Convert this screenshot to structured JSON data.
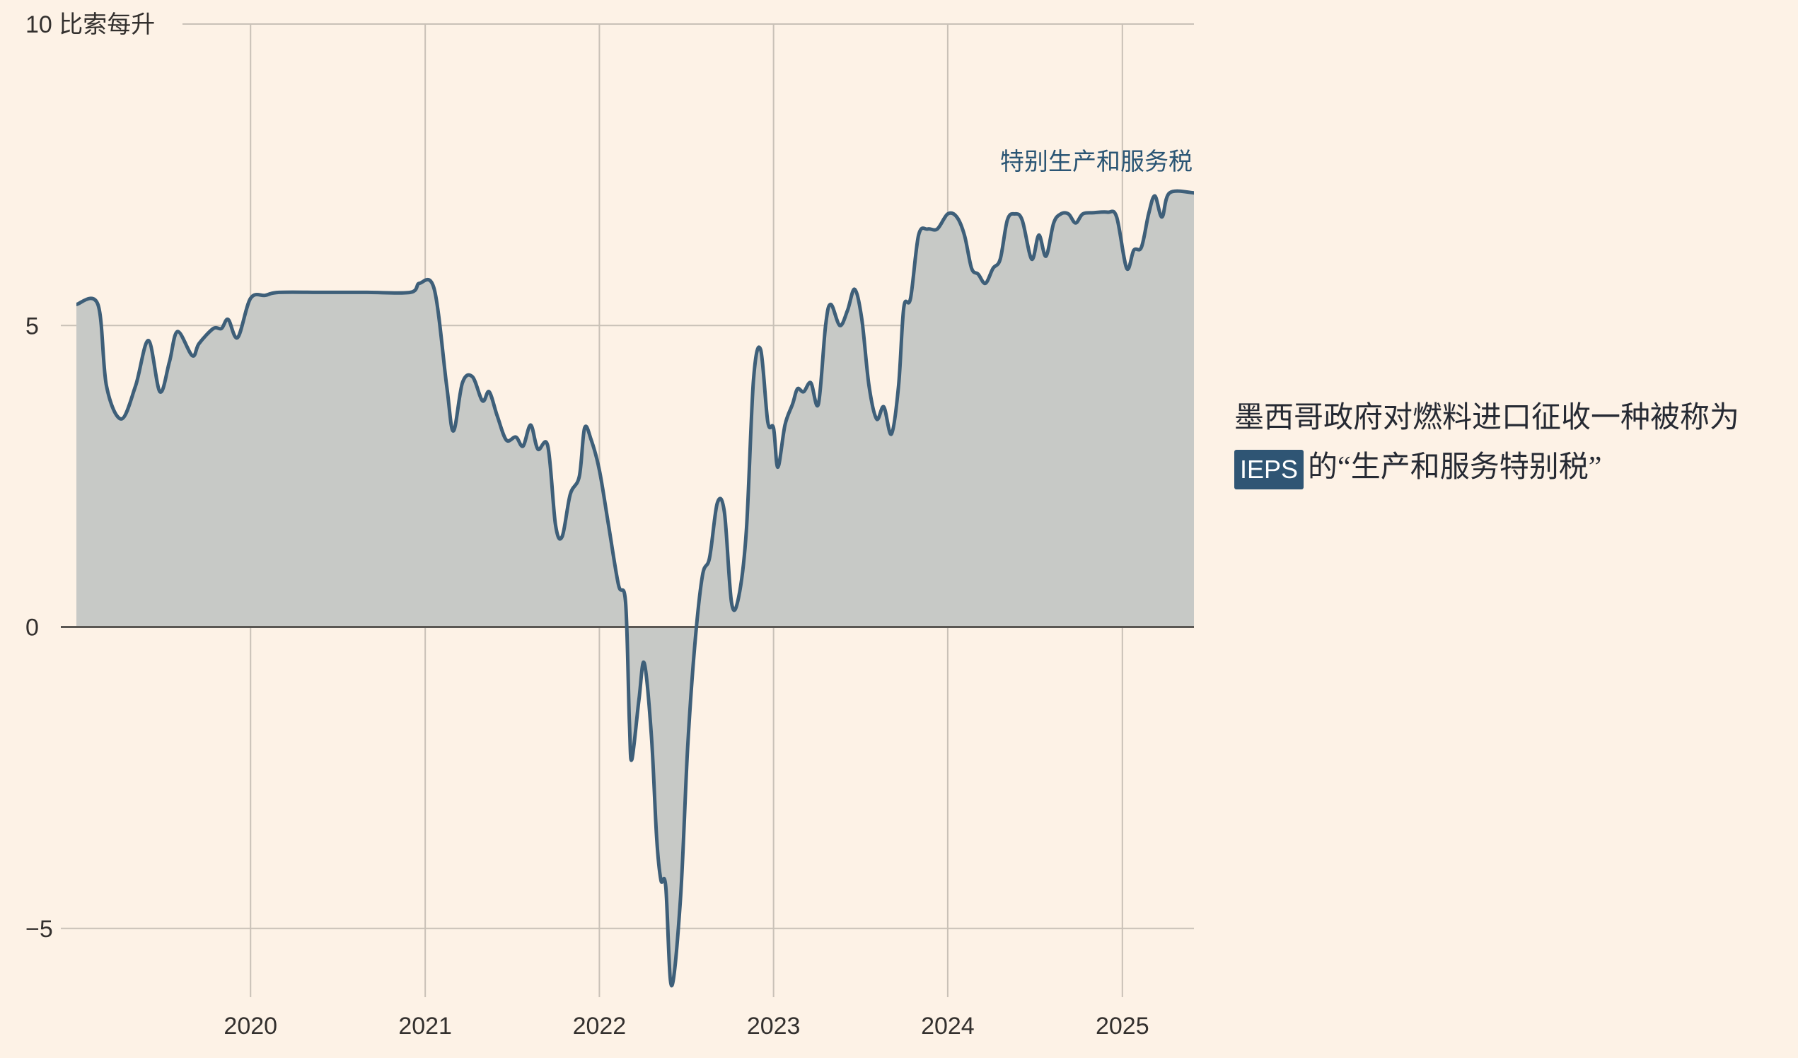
{
  "chart_data": {
    "type": "area",
    "ylabel": "比索每升",
    "ylim": [
      -6,
      10
    ],
    "yticks": [
      {
        "value": 10,
        "label": "10"
      },
      {
        "value": 5,
        "label": "5"
      },
      {
        "value": 0,
        "label": "0"
      },
      {
        "value": -5,
        "label": "−5"
      }
    ],
    "xlim": [
      "2019-01-01",
      "2025-05-31"
    ],
    "xticks": [
      {
        "date": "2020-01-01",
        "label": "2020"
      },
      {
        "date": "2021-01-01",
        "label": "2021"
      },
      {
        "date": "2022-01-01",
        "label": "2022"
      },
      {
        "date": "2023-01-01",
        "label": "2023"
      },
      {
        "date": "2024-01-01",
        "label": "2024"
      },
      {
        "date": "2025-01-01",
        "label": "2025"
      }
    ],
    "grid": true,
    "series": [
      {
        "name": "特别生产和服务税",
        "points": [
          [
            "2019-01-01",
            5.35
          ],
          [
            "2019-02-15",
            5.35
          ],
          [
            "2019-03-05",
            4.0
          ],
          [
            "2019-04-05",
            3.45
          ],
          [
            "2019-05-05",
            4.0
          ],
          [
            "2019-06-01",
            4.75
          ],
          [
            "2019-06-25",
            3.9
          ],
          [
            "2019-07-15",
            4.4
          ],
          [
            "2019-08-01",
            4.9
          ],
          [
            "2019-09-01",
            4.5
          ],
          [
            "2019-09-15",
            4.7
          ],
          [
            "2019-10-15",
            4.95
          ],
          [
            "2019-11-01",
            4.95
          ],
          [
            "2019-11-15",
            5.1
          ],
          [
            "2019-12-05",
            4.8
          ],
          [
            "2020-01-01",
            5.45
          ],
          [
            "2020-02-01",
            5.5
          ],
          [
            "2020-03-01",
            5.55
          ],
          [
            "2020-06-01",
            5.55
          ],
          [
            "2020-09-01",
            5.55
          ],
          [
            "2020-12-01",
            5.55
          ],
          [
            "2020-12-20",
            5.7
          ],
          [
            "2021-01-20",
            5.6
          ],
          [
            "2021-02-15",
            4.0
          ],
          [
            "2021-03-01",
            3.25
          ],
          [
            "2021-03-20",
            4.05
          ],
          [
            "2021-04-10",
            4.15
          ],
          [
            "2021-05-01",
            3.75
          ],
          [
            "2021-05-15",
            3.9
          ],
          [
            "2021-06-01",
            3.5
          ],
          [
            "2021-06-20",
            3.1
          ],
          [
            "2021-07-10",
            3.15
          ],
          [
            "2021-07-25",
            3.0
          ],
          [
            "2021-08-10",
            3.35
          ],
          [
            "2021-08-25",
            2.95
          ],
          [
            "2021-09-15",
            3.0
          ],
          [
            "2021-10-01",
            1.7
          ],
          [
            "2021-10-15",
            1.5
          ],
          [
            "2021-11-01",
            2.2
          ],
          [
            "2021-11-20",
            2.5
          ],
          [
            "2021-12-01",
            3.3
          ],
          [
            "2021-12-15",
            3.1
          ],
          [
            "2022-01-01",
            2.6
          ],
          [
            "2022-01-20",
            1.7
          ],
          [
            "2022-02-10",
            0.7
          ],
          [
            "2022-02-25",
            0.4
          ],
          [
            "2022-03-05",
            -1.6
          ],
          [
            "2022-03-10",
            -2.2
          ],
          [
            "2022-03-25",
            -1.2
          ],
          [
            "2022-04-05",
            -0.6
          ],
          [
            "2022-04-20",
            -1.8
          ],
          [
            "2022-05-01",
            -3.5
          ],
          [
            "2022-05-10",
            -4.2
          ],
          [
            "2022-05-20",
            -4.3
          ],
          [
            "2022-06-01",
            -5.95
          ],
          [
            "2022-06-20",
            -4.5
          ],
          [
            "2022-07-05",
            -2.0
          ],
          [
            "2022-07-20",
            -0.3
          ],
          [
            "2022-08-05",
            0.85
          ],
          [
            "2022-08-20",
            1.15
          ],
          [
            "2022-09-05",
            2.05
          ],
          [
            "2022-09-20",
            1.9
          ],
          [
            "2022-10-05",
            0.4
          ],
          [
            "2022-10-20",
            0.5
          ],
          [
            "2022-11-05",
            1.6
          ],
          [
            "2022-11-20",
            4.1
          ],
          [
            "2022-12-05",
            4.6
          ],
          [
            "2022-12-20",
            3.4
          ],
          [
            "2023-01-01",
            3.3
          ],
          [
            "2023-01-10",
            2.65
          ],
          [
            "2023-01-25",
            3.35
          ],
          [
            "2023-02-10",
            3.7
          ],
          [
            "2023-02-20",
            3.95
          ],
          [
            "2023-03-05",
            3.9
          ],
          [
            "2023-03-20",
            4.05
          ],
          [
            "2023-04-05",
            3.7
          ],
          [
            "2023-04-20",
            5.0
          ],
          [
            "2023-05-01",
            5.35
          ],
          [
            "2023-05-20",
            5.0
          ],
          [
            "2023-06-05",
            5.25
          ],
          [
            "2023-06-20",
            5.6
          ],
          [
            "2023-07-05",
            5.1
          ],
          [
            "2023-07-20",
            4.0
          ],
          [
            "2023-08-05",
            3.45
          ],
          [
            "2023-08-20",
            3.65
          ],
          [
            "2023-09-05",
            3.2
          ],
          [
            "2023-09-20",
            4.0
          ],
          [
            "2023-10-01",
            5.3
          ],
          [
            "2023-10-15",
            5.45
          ],
          [
            "2023-11-01",
            6.5
          ],
          [
            "2023-11-20",
            6.6
          ],
          [
            "2023-12-10",
            6.6
          ],
          [
            "2024-01-01",
            6.85
          ],
          [
            "2024-01-20",
            6.8
          ],
          [
            "2024-02-05",
            6.5
          ],
          [
            "2024-02-20",
            5.95
          ],
          [
            "2024-03-05",
            5.85
          ],
          [
            "2024-03-20",
            5.7
          ],
          [
            "2024-04-05",
            5.95
          ],
          [
            "2024-04-20",
            6.1
          ],
          [
            "2024-05-05",
            6.75
          ],
          [
            "2024-05-20",
            6.85
          ],
          [
            "2024-06-05",
            6.75
          ],
          [
            "2024-06-25",
            6.1
          ],
          [
            "2024-07-10",
            6.5
          ],
          [
            "2024-07-25",
            6.15
          ],
          [
            "2024-08-10",
            6.7
          ],
          [
            "2024-08-25",
            6.85
          ],
          [
            "2024-09-10",
            6.85
          ],
          [
            "2024-09-25",
            6.7
          ],
          [
            "2024-10-10",
            6.85
          ],
          [
            "2024-11-01",
            6.87
          ],
          [
            "2024-12-01",
            6.88
          ],
          [
            "2024-12-20",
            6.8
          ],
          [
            "2025-01-10",
            5.95
          ],
          [
            "2025-01-25",
            6.25
          ],
          [
            "2025-02-10",
            6.3
          ],
          [
            "2025-02-25",
            6.85
          ],
          [
            "2025-03-10",
            7.15
          ],
          [
            "2025-03-25",
            6.8
          ],
          [
            "2025-04-10",
            7.2
          ],
          [
            "2025-05-31",
            7.2
          ]
        ]
      }
    ],
    "annotation": {
      "text_before": "墨西哥政府对燃料进口征收一种被称为",
      "badge": "IEPS",
      "text_after": "的“生产和服务特别税”"
    }
  },
  "colors": {
    "background": "#fdf2e6",
    "line": "#3e5f79",
    "area_fill": "#c7c9c6",
    "grid": "#c9c1b7",
    "zero_line": "#5a5753",
    "badge_bg": "#2f5574",
    "label_text": "#2a5574"
  }
}
